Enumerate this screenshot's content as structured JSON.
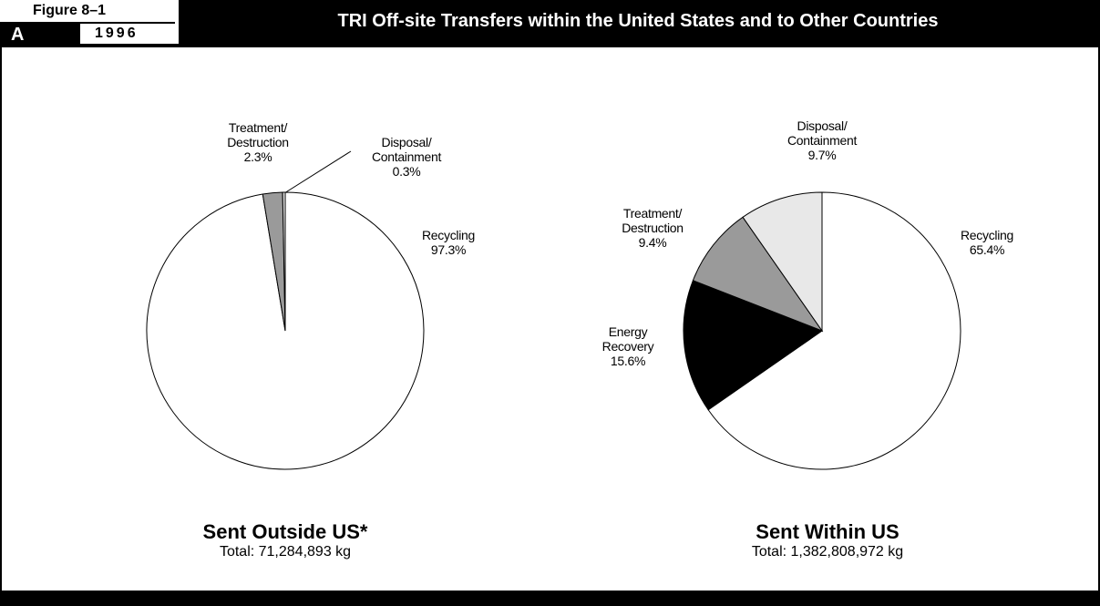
{
  "header": {
    "figure": "Figure 8–1",
    "panel": "A",
    "year": "1996",
    "title": "TRI Off-site Transfers within the United States and to Other Countries"
  },
  "chart_data": [
    {
      "type": "pie",
      "title": "Sent Outside US*",
      "subtitle": "Total: 71,284,893 kg",
      "categories": [
        "Recycling",
        "Treatment/\nDestruction",
        "Disposal/\nContainment"
      ],
      "values": [
        97.3,
        2.3,
        0.3
      ],
      "value_labels": [
        "97.3%",
        "2.3%",
        "0.3%"
      ],
      "colors": [
        "#ffffff",
        "#9a9a9a",
        "#e6e6e6"
      ]
    },
    {
      "type": "pie",
      "title": "Sent Within US",
      "subtitle": "Total: 1,382,808,972 kg",
      "categories": [
        "Recycling",
        "Energy\nRecovery",
        "Treatment/\nDestruction",
        "Disposal/\nContainment"
      ],
      "values": [
        65.4,
        15.6,
        9.4,
        9.7
      ],
      "value_labels": [
        "65.4%",
        "15.6%",
        "9.4%",
        "9.7%"
      ],
      "colors": [
        "#ffffff",
        "#000000",
        "#9a9a9a",
        "#e8e8e8"
      ]
    }
  ]
}
